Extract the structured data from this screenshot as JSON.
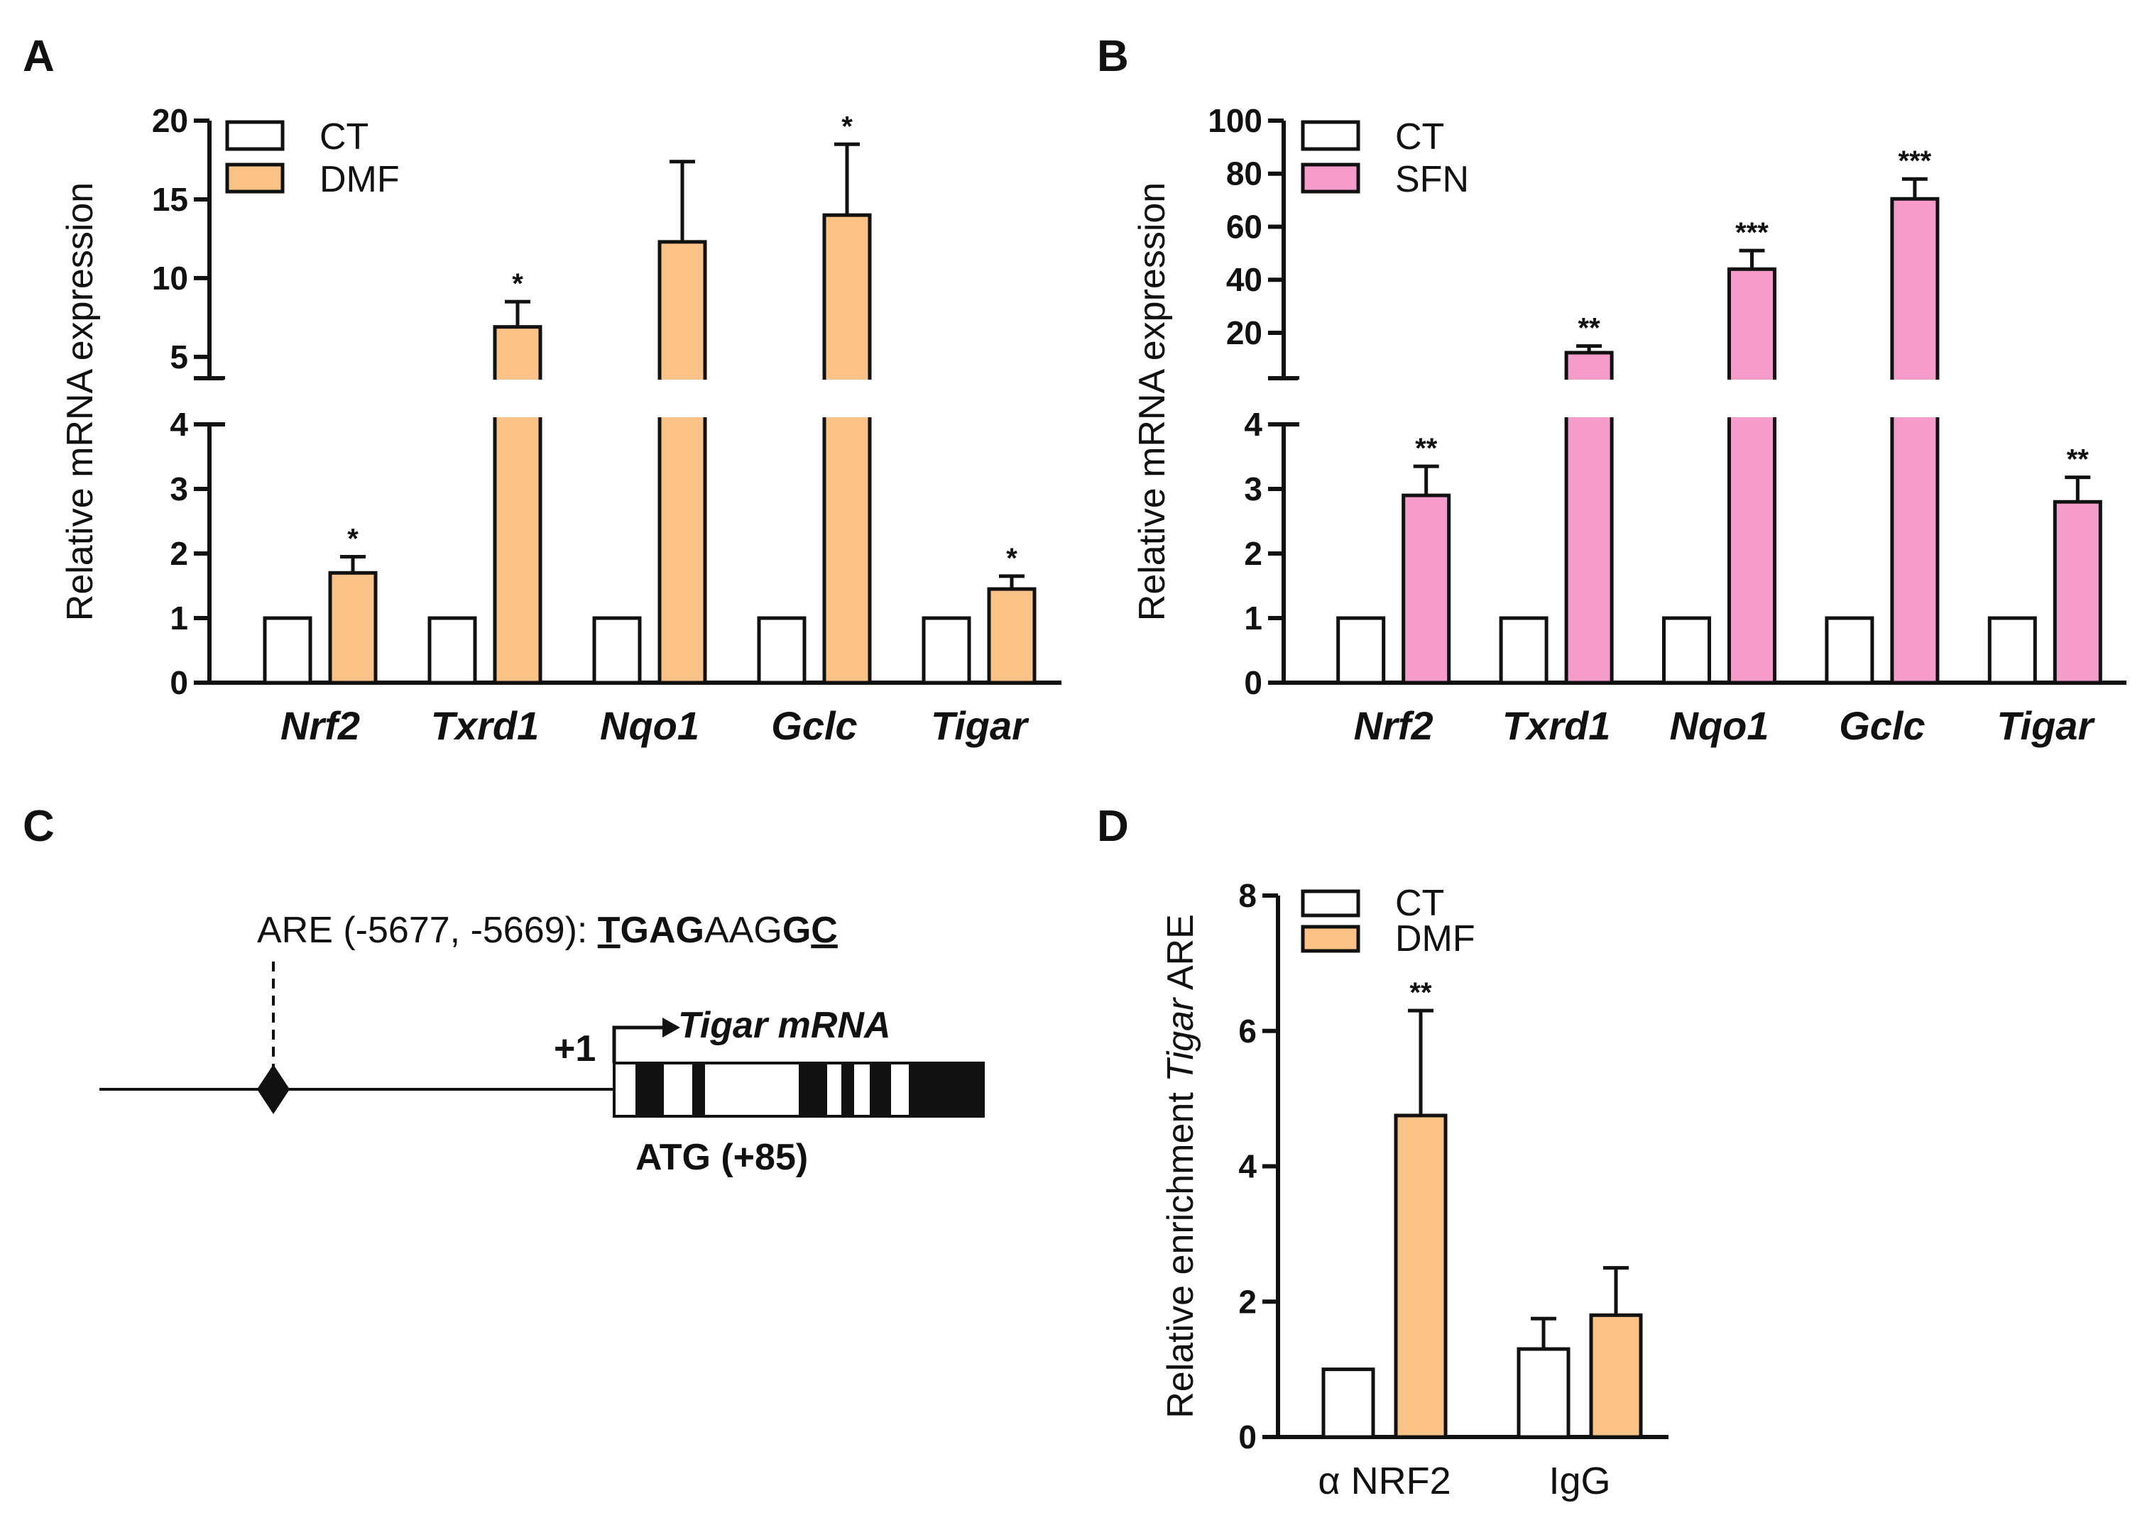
{
  "chart_data": [
    {
      "panel": "A",
      "type": "bar",
      "ylabel": "Relative mRNA expression",
      "categories": [
        "Nrf2",
        "Txrd1",
        "Nqo1",
        "Gclc",
        "Tigar"
      ],
      "series": [
        {
          "name": "CT",
          "values": [
            1,
            1,
            1,
            1,
            1
          ],
          "errors": [
            0,
            0,
            0,
            0,
            0
          ],
          "color": "#ffffff"
        },
        {
          "name": "DMF",
          "values": [
            1.7,
            6.9,
            12.3,
            14.0,
            1.45
          ],
          "errors": [
            0.25,
            1.6,
            5.1,
            4.5,
            0.2
          ],
          "color": "#fbc287"
        }
      ],
      "significance": [
        "*",
        "*",
        "",
        "*",
        "*"
      ],
      "ylim_lower": [
        0,
        4
      ],
      "ylim_upper": [
        4,
        20
      ],
      "yticks_lower": [
        "0",
        "1",
        "2",
        "3",
        "4"
      ],
      "yticks_upper": [
        "5",
        "10",
        "15",
        "20"
      ]
    },
    {
      "panel": "B",
      "type": "bar",
      "ylabel": "Relative mRNA expression",
      "categories": [
        "Nrf2",
        "Txrd1",
        "Nqo1",
        "Gclc",
        "Tigar"
      ],
      "series": [
        {
          "name": "CT",
          "values": [
            1,
            1,
            1,
            1,
            1
          ],
          "errors": [
            0,
            0,
            0,
            0,
            0
          ],
          "color": "#ffffff"
        },
        {
          "name": "SFN",
          "values": [
            2.9,
            12.5,
            44.0,
            70.5,
            2.8
          ],
          "errors": [
            0.45,
            2.5,
            7.0,
            7.5,
            0.38
          ],
          "color": "#f59ccb"
        }
      ],
      "significance": [
        "**",
        "**",
        "***",
        "***",
        "**"
      ],
      "ylim_lower": [
        0,
        4
      ],
      "ylim_upper": [
        5,
        100
      ],
      "yticks_lower": [
        "0",
        "1",
        "2",
        "3",
        "4"
      ],
      "yticks_upper": [
        "20",
        "40",
        "60",
        "80",
        "100"
      ]
    },
    {
      "panel": "D",
      "type": "bar",
      "ylabel_prefix": "Relative enrichment ",
      "ylabel_italic": "Tigar",
      "ylabel_suffix": " ARE",
      "categories": [
        "α NRF2",
        "IgG"
      ],
      "series": [
        {
          "name": "CT",
          "values": [
            1.0,
            1.3
          ],
          "errors": [
            0,
            0.45
          ],
          "color": "#ffffff"
        },
        {
          "name": "DMF",
          "values": [
            4.75,
            1.8
          ],
          "errors": [
            1.55,
            0.7
          ],
          "color": "#fbc287"
        }
      ],
      "significance": [
        [
          "",
          "**"
        ],
        [
          "",
          ""
        ]
      ],
      "ylim": [
        0,
        8
      ],
      "yticks": [
        "0",
        "2",
        "4",
        "6",
        "8"
      ]
    }
  ],
  "panels": {
    "A": {
      "label": "A"
    },
    "B": {
      "label": "B"
    },
    "C": {
      "label": "C"
    },
    "D": {
      "label": "D"
    }
  },
  "diagram": {
    "are_label": "ARE (-5677, -5669): ",
    "seq_p1": "T",
    "seq_p2": "GAG",
    "seq_p3": "AAG",
    "seq_p4": "G",
    "seq_p5": "C",
    "tss": "+1",
    "mrna": "Tigar mRNA",
    "atg": "ATG (+85)"
  }
}
